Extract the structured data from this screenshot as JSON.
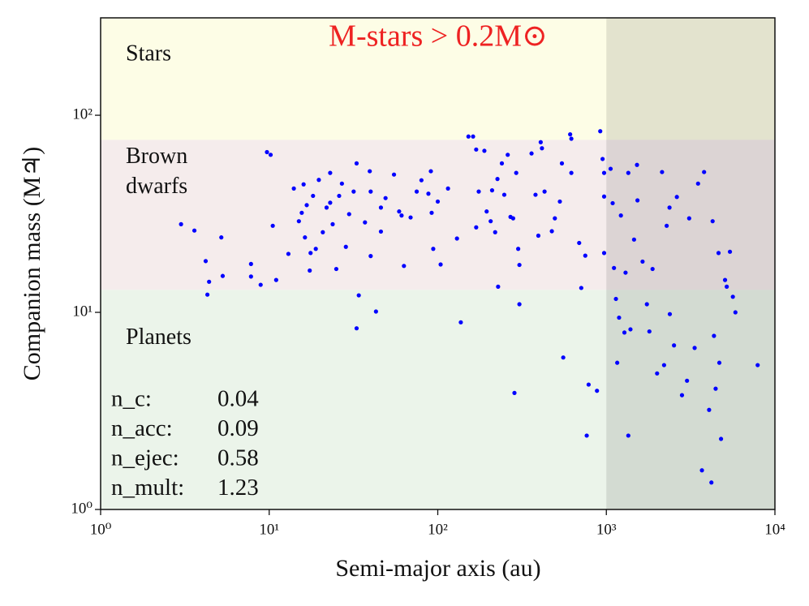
{
  "chart_data": {
    "type": "scatter",
    "xlabel": "Semi-major axis (au)",
    "ylabel": "Companion mass (M♃)",
    "xscale": "log",
    "yscale": "log",
    "xlim": [
      1,
      10000
    ],
    "ylim": [
      1,
      312
    ],
    "xticks": [
      {
        "value": 1,
        "label": "10⁰"
      },
      {
        "value": 10,
        "label": "10¹"
      },
      {
        "value": 100,
        "label": "10²"
      },
      {
        "value": 1000,
        "label": "10³"
      },
      {
        "value": 10000,
        "label": "10⁴"
      }
    ],
    "yticks": [
      {
        "value": 1,
        "label": "10⁰"
      },
      {
        "value": 10,
        "label": "10¹"
      },
      {
        "value": 100,
        "label": "10²"
      }
    ],
    "regions": [
      {
        "label_lines": [
          "Stars"
        ],
        "ylim": [
          75,
          312
        ],
        "color": "#fdfde6"
      },
      {
        "label_lines": [
          "Brown",
          "dwarfs"
        ],
        "ylim": [
          13,
          75
        ],
        "color": "#f5ecec"
      },
      {
        "label_lines": [
          "Planets"
        ],
        "ylim": [
          1,
          13
        ],
        "color": "#ebf4ea"
      }
    ],
    "shaded": {
      "label": "M-stars > 0.2M⊙",
      "xlim": [
        1000,
        10000
      ],
      "color": "#000000",
      "opacity": 0.1,
      "label_color": "#ee2222"
    },
    "stats": [
      {
        "label": "n_c:",
        "value": 0.04
      },
      {
        "label": "n_acc:",
        "value": 0.09
      },
      {
        "label": "n_ejec:",
        "value": 0.58
      },
      {
        "label": "n_mult:",
        "value": 1.23
      }
    ],
    "color": "#0000ff",
    "x": [
      3.0,
      3.6,
      4.2,
      4.4,
      4.3,
      5.2,
      5.3,
      7.8,
      7.8,
      8.9,
      9.7,
      10.2,
      10.5,
      11,
      13,
      14,
      15,
      15.6,
      16,
      16.3,
      16.7,
      17.4,
      17.6,
      18.2,
      18.9,
      19.7,
      20.8,
      21.9,
      23,
      23,
      23.8,
      25,
      26,
      27,
      28.5,
      29.8,
      31.7,
      33,
      34,
      33,
      37,
      39.5,
      40,
      40,
      43,
      46,
      46,
      49,
      55,
      59,
      61,
      63,
      69,
      75,
      80,
      88,
      91,
      92,
      94,
      100,
      104,
      115,
      130,
      137,
      152,
      162,
      169,
      169,
      175,
      189,
      195,
      206,
      210,
      219,
      226,
      228,
      240,
      248,
      260,
      270,
      280,
      285,
      292,
      300,
      305,
      305,
      360,
      380,
      395,
      408,
      415,
      430,
      475,
      495,
      530,
      545,
      555,
      610,
      620,
      620,
      690,
      710,
      750,
      785,
      765,
      880,
      920,
      950,
      970,
      970,
      970,
      1060,
      1090,
      1110,
      1140,
      1160,
      1190,
      1220,
      1280,
      1300,
      1350,
      1390,
      1350,
      1460,
      1520,
      1530,
      1640,
      1740,
      1800,
      1880,
      2000,
      2140,
      2200,
      2280,
      2370,
      2380,
      2520,
      2620,
      2810,
      3010,
      3100,
      3340,
      3500,
      3690,
      3800,
      4070,
      4270,
      4350,
      4450,
      4630,
      4680,
      4790,
      5060,
      5180,
      5410,
      5630,
      5830,
      7900,
      4200
    ],
    "y": [
      28,
      26,
      18.2,
      14.3,
      12.3,
      24,
      15.3,
      17.6,
      15.2,
      13.8,
      65,
      63,
      27.5,
      14.6,
      19.8,
      42.5,
      29,
      32,
      44.6,
      24,
      35,
      16.3,
      20,
      39,
      21,
      47,
      25.5,
      34,
      51,
      36,
      28,
      16.6,
      39,
      45,
      21.5,
      31.5,
      41,
      57,
      12.2,
      8.3,
      28.6,
      52,
      41,
      19.3,
      10.1,
      34,
      25.7,
      38,
      50,
      32.5,
      31,
      17.2,
      30.3,
      41,
      46.8,
      40,
      52,
      32,
      21,
      36.5,
      17.5,
      42.5,
      23.7,
      8.9,
      78,
      78,
      67,
      27,
      41,
      66,
      32.5,
      29,
      41.6,
      25.5,
      47.5,
      13.5,
      57,
      39.5,
      63,
      30.5,
      30,
      3.9,
      51,
      21,
      17.4,
      11,
      64,
      39.5,
      24.5,
      73,
      68,
      41,
      25.8,
      30,
      36.5,
      57,
      5.9,
      80,
      76,
      51,
      22.5,
      13.3,
      19.4,
      4.3,
      2.37,
      4,
      83,
      60,
      51,
      38.7,
      20,
      53.5,
      35.8,
      16.8,
      11.7,
      5.55,
      9.4,
      31,
      7.9,
      15.9,
      51,
      8.2,
      2.37,
      23.4,
      56,
      37,
      18.1,
      11,
      8,
      16.6,
      4.9,
      51.5,
      5.4,
      27.5,
      34,
      9.8,
      6.8,
      38.5,
      3.8,
      4.5,
      30,
      6.6,
      45,
      1.58,
      51.5,
      3.2,
      29,
      7.6,
      4.1,
      20,
      5.55,
      2.28,
      14.6,
      13.5,
      20.3,
      12,
      10,
      5.4,
      1.37
    ]
  }
}
